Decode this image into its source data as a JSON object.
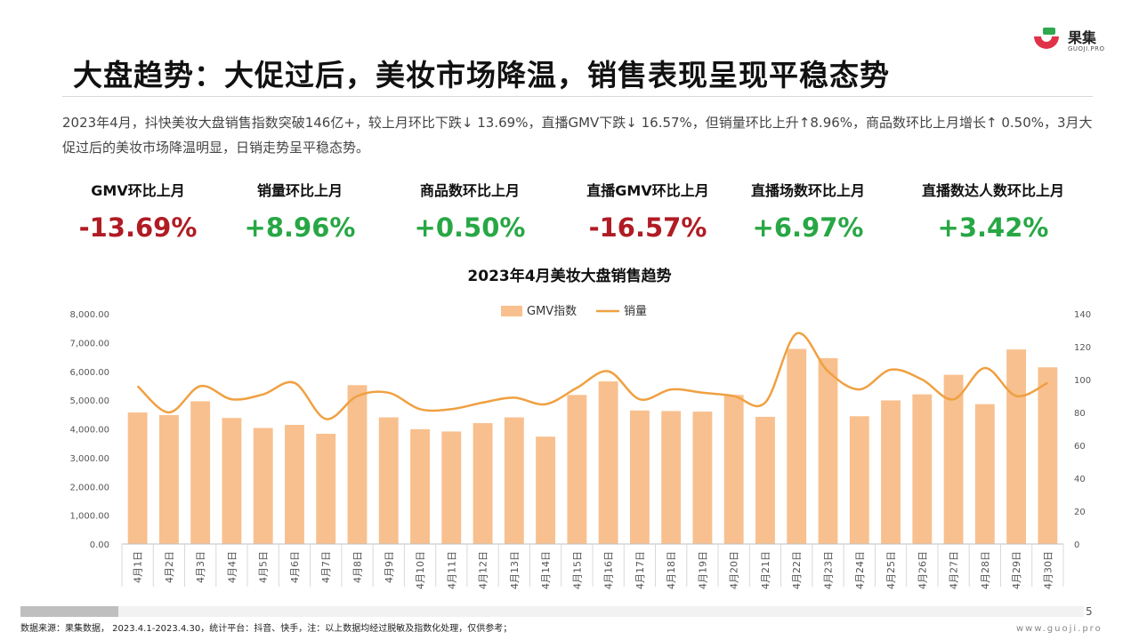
{
  "brand": {
    "name": "果集",
    "sub": "GUOJI.PRO"
  },
  "title": "大盘趋势：大促过后，美妆市场降温，销售表现呈现平稳态势",
  "summary": "2023年4月，抖快美妆大盘销售指数突破146亿+，较上月环比下跌↓ 13.69%，直播GMV下跌↓ 16.57%，但销量环比上升↑8.96%，商品数环比上月增长↑ 0.50%，3月大促过后的美妆市场降温明显，日销走势呈平稳态势。",
  "kpis": [
    {
      "label": "GMV环比上月",
      "value": "-13.69%",
      "trend": "neg"
    },
    {
      "label": "销量环比上月",
      "value": "+8.96%",
      "trend": "pos"
    },
    {
      "label": "商品数环比上月",
      "value": "+0.50%",
      "trend": "pos"
    },
    {
      "label": "直播GMV环比上月",
      "value": "-16.57%",
      "trend": "neg"
    },
    {
      "label": "直播场数环比上月",
      "value": "+6.97%",
      "trend": "pos"
    },
    {
      "label": "直播数达人数环比上月",
      "value": "+3.42%",
      "trend": "pos"
    }
  ],
  "colors": {
    "bar": "#f8c08e",
    "line": "#f0a041",
    "neg": "#b01c24",
    "pos": "#28a745"
  },
  "chart_data": {
    "type": "bar",
    "title": "2023年4月美妆大盘销售趋势",
    "categories": [
      "4月1日",
      "4月2日",
      "4月3日",
      "4月4日",
      "4月5日",
      "4月6日",
      "4月7日",
      "4月8日",
      "4月9日",
      "4月10日",
      "4月11日",
      "4月12日",
      "4月13日",
      "4月14日",
      "4月15日",
      "4月16日",
      "4月17日",
      "4月18日",
      "4月19日",
      "4月20日",
      "4月21日",
      "4月22日",
      "4月23日",
      "4月24日",
      "4月25日",
      "4月26日",
      "4月27日",
      "4月28日",
      "4月29日",
      "4月30日"
    ],
    "series": [
      {
        "name": "GMV指数",
        "type": "bar",
        "axis": "left",
        "values": [
          4570,
          4480,
          4960,
          4380,
          4030,
          4140,
          3830,
          5520,
          4400,
          3990,
          3910,
          4200,
          4400,
          3730,
          5180,
          5650,
          4640,
          4620,
          4600,
          5180,
          4420,
          6780,
          6460,
          4440,
          4990,
          5200,
          5880,
          4860,
          6760,
          6140
        ]
      },
      {
        "name": "销量",
        "type": "line",
        "axis": "right",
        "values": [
          96,
          80,
          96,
          88,
          91,
          98,
          76,
          90,
          92,
          82,
          82,
          86,
          89,
          85,
          95,
          105,
          88,
          94,
          92,
          90,
          86,
          128,
          105,
          94,
          106,
          100,
          88,
          107,
          90,
          98
        ]
      }
    ],
    "yleft": {
      "min": 0,
      "max": 8000,
      "step": 1000,
      "ticks": [
        "0.00",
        "1,000.00",
        "2,000.00",
        "3,000.00",
        "4,000.00",
        "5,000.00",
        "6,000.00",
        "7,000.00",
        "8,000.00"
      ]
    },
    "yright": {
      "min": 0,
      "max": 140,
      "step": 20,
      "ticks": [
        "0",
        "20",
        "40",
        "60",
        "80",
        "100",
        "120",
        "140"
      ]
    },
    "legend": "top-center",
    "grid": false
  },
  "footer": {
    "page": "5",
    "source": "数据来源：果集数据， 2023.4.1-2023.4.30，统计平台：抖音、快手，注：以上数据均经过脱敏及指数化处理，仅供参考；",
    "site": "www.guoji.pro"
  }
}
